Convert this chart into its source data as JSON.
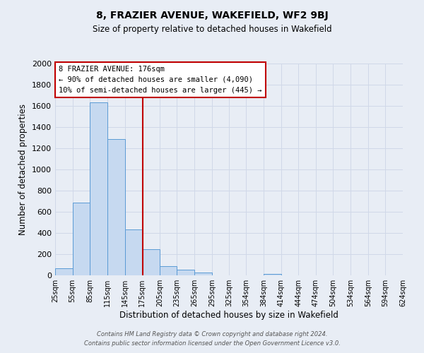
{
  "title": "8, FRAZIER AVENUE, WAKEFIELD, WF2 9BJ",
  "subtitle": "Size of property relative to detached houses in Wakefield",
  "xlabel": "Distribution of detached houses by size in Wakefield",
  "ylabel": "Number of detached properties",
  "bin_labels": [
    "25sqm",
    "55sqm",
    "85sqm",
    "115sqm",
    "145sqm",
    "175sqm",
    "205sqm",
    "235sqm",
    "265sqm",
    "295sqm",
    "325sqm",
    "354sqm",
    "384sqm",
    "414sqm",
    "444sqm",
    "474sqm",
    "504sqm",
    "534sqm",
    "564sqm",
    "594sqm",
    "624sqm"
  ],
  "bin_edges": [
    25,
    55,
    85,
    115,
    145,
    175,
    205,
    235,
    265,
    295,
    325,
    354,
    384,
    414,
    444,
    474,
    504,
    534,
    564,
    594,
    624
  ],
  "bar_heights": [
    70,
    690,
    1635,
    1285,
    435,
    250,
    90,
    55,
    30,
    0,
    0,
    0,
    15,
    0,
    0,
    0,
    0,
    0,
    0,
    0
  ],
  "bar_color": "#c6d9f0",
  "bar_edge_color": "#5b9bd5",
  "property_line_x": 176,
  "property_line_color": "#c00000",
  "ylim": [
    0,
    2000
  ],
  "annotation_text_line1": "8 FRAZIER AVENUE: 176sqm",
  "annotation_text_line2": "← 90% of detached houses are smaller (4,090)",
  "annotation_text_line3": "10% of semi-detached houses are larger (445) →",
  "annotation_box_color": "#ffffff",
  "annotation_box_edge_color": "#c00000",
  "grid_color": "#d0d8e8",
  "background_color": "#e8edf5",
  "footer_line1": "Contains HM Land Registry data © Crown copyright and database right 2024.",
  "footer_line2": "Contains public sector information licensed under the Open Government Licence v3.0."
}
